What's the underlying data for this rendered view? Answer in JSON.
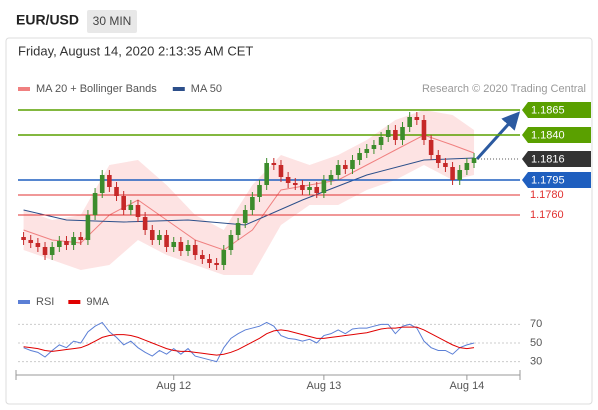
{
  "header": {
    "symbol": "EUR/USD",
    "timeframe": "30 MIN",
    "timestamp": "Friday, August 14, 2020 2:13:35 AM CET",
    "credit": "Research © 2020 Trading Central"
  },
  "chart_data": [
    {
      "type": "candlestick",
      "categories": [
        null,
        null,
        null,
        null,
        null,
        null,
        null,
        null,
        null,
        null,
        null,
        null,
        null,
        null,
        null,
        null,
        null,
        null,
        null,
        null,
        null,
        "Aug 12",
        null,
        null,
        null,
        null,
        null,
        null,
        null,
        null,
        null,
        null,
        null,
        null,
        null,
        null,
        null,
        null,
        null,
        null,
        null,
        null,
        "Aug 13",
        null,
        null,
        null,
        null,
        null,
        null,
        null,
        null,
        null,
        null,
        null,
        null,
        null,
        null,
        null,
        null,
        null,
        null,
        null,
        "Aug 14",
        null
      ],
      "open": [
        1.1738,
        1.1735,
        1.1732,
        1.1728,
        1.172,
        1.1728,
        1.1734,
        1.173,
        1.1738,
        1.1735,
        1.176,
        1.1782,
        1.18,
        1.1788,
        1.1779,
        1.1765,
        1.177,
        1.1758,
        1.1745,
        1.1735,
        1.174,
        1.1728,
        1.1733,
        1.1724,
        1.173,
        1.172,
        1.1716,
        1.1712,
        1.171,
        1.1725,
        1.174,
        1.1752,
        1.1765,
        1.1778,
        1.179,
        1.1812,
        1.181,
        1.1798,
        1.1792,
        1.179,
        1.1785,
        1.1788,
        1.1782,
        1.1795,
        1.18,
        1.181,
        1.1806,
        1.1815,
        1.1822,
        1.1826,
        1.183,
        1.1838,
        1.1845,
        1.1835,
        1.1848,
        1.1858,
        1.1855,
        1.1835,
        1.182,
        1.1812,
        1.1808,
        1.1795,
        1.1805,
        1.1812
      ],
      "high": [
        1.1743,
        1.174,
        1.1737,
        1.1733,
        1.1733,
        1.1739,
        1.1739,
        1.1743,
        1.1743,
        1.1765,
        1.1787,
        1.1805,
        1.1805,
        1.1793,
        1.1784,
        1.1775,
        1.1775,
        1.1763,
        1.175,
        1.1745,
        1.1745,
        1.1738,
        1.1738,
        1.1735,
        1.1735,
        1.1725,
        1.1721,
        1.1717,
        1.173,
        1.1745,
        1.1757,
        1.177,
        1.1783,
        1.1795,
        1.1817,
        1.1817,
        1.1815,
        1.1803,
        1.1797,
        1.1795,
        1.1793,
        1.1793,
        1.18,
        1.1805,
        1.1815,
        1.1815,
        1.182,
        1.1827,
        1.1831,
        1.1835,
        1.1843,
        1.185,
        1.185,
        1.1853,
        1.1863,
        1.1863,
        1.186,
        1.184,
        1.1825,
        1.1817,
        1.1813,
        1.181,
        1.1817,
        1.1822
      ],
      "low": [
        1.173,
        1.1727,
        1.1723,
        1.1715,
        1.1715,
        1.1723,
        1.1725,
        1.1725,
        1.173,
        1.173,
        1.1755,
        1.1777,
        1.1783,
        1.1774,
        1.176,
        1.176,
        1.1753,
        1.174,
        1.173,
        1.173,
        1.1723,
        1.1723,
        1.1719,
        1.1719,
        1.1715,
        1.1711,
        1.1707,
        1.1705,
        1.1705,
        1.172,
        1.1735,
        1.1747,
        1.176,
        1.1773,
        1.1785,
        1.1805,
        1.1793,
        1.1787,
        1.1785,
        1.178,
        1.178,
        1.1777,
        1.1777,
        1.179,
        1.1795,
        1.1801,
        1.1801,
        1.181,
        1.1817,
        1.1821,
        1.1825,
        1.1833,
        1.183,
        1.183,
        1.1843,
        1.185,
        1.183,
        1.1815,
        1.1807,
        1.1803,
        1.179,
        1.179,
        1.18,
        1.1807
      ],
      "close": [
        1.1735,
        1.1732,
        1.1728,
        1.172,
        1.1728,
        1.1734,
        1.173,
        1.1738,
        1.1735,
        1.176,
        1.1782,
        1.18,
        1.1788,
        1.1779,
        1.1765,
        1.177,
        1.1758,
        1.1745,
        1.1735,
        1.174,
        1.1728,
        1.1733,
        1.1724,
        1.173,
        1.172,
        1.1716,
        1.1712,
        1.171,
        1.1725,
        1.174,
        1.1752,
        1.1765,
        1.1778,
        1.179,
        1.1812,
        1.181,
        1.1798,
        1.1792,
        1.179,
        1.1785,
        1.1788,
        1.1782,
        1.1795,
        1.18,
        1.181,
        1.1806,
        1.1815,
        1.1822,
        1.1826,
        1.183,
        1.1838,
        1.1845,
        1.1835,
        1.1848,
        1.1858,
        1.1855,
        1.1835,
        1.182,
        1.1812,
        1.1808,
        1.1795,
        1.1805,
        1.1812,
        1.1817
      ],
      "up_color": "#3c8c2c",
      "down_color": "#c62828",
      "ylim": [
        1.17,
        1.1875
      ],
      "overlays": [
        {
          "name": "MA 20 + Bollinger Bands",
          "color": "#f08080",
          "band_color": "#fde3e3",
          "x": [
            0,
            4,
            8,
            12,
            16,
            20,
            24,
            28,
            32,
            36,
            40,
            44,
            48,
            52,
            56,
            60,
            63
          ],
          "values": [
            1.1745,
            1.1735,
            1.1732,
            1.176,
            1.1775,
            1.1755,
            1.1735,
            1.1725,
            1.1745,
            1.1785,
            1.179,
            1.1795,
            1.181,
            1.1825,
            1.184,
            1.183,
            1.1822
          ],
          "upper": [
            1.1765,
            1.1755,
            1.176,
            1.181,
            1.1815,
            1.179,
            1.176,
            1.1745,
            1.179,
            1.182,
            1.181,
            1.182,
            1.1835,
            1.1855,
            1.1865,
            1.186,
            1.1845
          ],
          "lower": [
            1.1725,
            1.1715,
            1.1705,
            1.171,
            1.1735,
            1.172,
            1.171,
            1.17,
            1.17,
            1.175,
            1.177,
            1.177,
            1.1785,
            1.1795,
            1.181,
            1.1795,
            1.18
          ]
        },
        {
          "name": "MA 50",
          "color": "#2c4f8a",
          "x": [
            0,
            6,
            14,
            23,
            31,
            39,
            48,
            56,
            63
          ],
          "values": [
            1.1765,
            1.1755,
            1.1753,
            1.1755,
            1.175,
            1.1775,
            1.18,
            1.1815,
            1.1817
          ]
        }
      ],
      "levels": [
        {
          "value": 1.1865,
          "color": "#5aa000",
          "style": "box"
        },
        {
          "value": 1.184,
          "label": "1.1840",
          "color": "#5aa000",
          "style": "box"
        },
        {
          "value": 1.1816,
          "color": "#333333",
          "style": "current"
        },
        {
          "value": 1.1795,
          "color": "#1f5fbf",
          "style": "box"
        },
        {
          "value": 1.178,
          "label": "1.1780",
          "color": "#e03030",
          "style": "text"
        },
        {
          "value": 1.176,
          "label": "1.1760",
          "color": "#e03030",
          "style": "text"
        }
      ]
    },
    {
      "type": "line",
      "series": [
        {
          "name": "RSI",
          "color": "#5b7fd6",
          "values": [
            45,
            42,
            40,
            35,
            42,
            48,
            45,
            52,
            50,
            62,
            68,
            72,
            62,
            56,
            48,
            52,
            45,
            40,
            36,
            42,
            38,
            44,
            38,
            44,
            36,
            34,
            32,
            30,
            45,
            55,
            60,
            64,
            66,
            68,
            72,
            68,
            58,
            55,
            54,
            52,
            54,
            50,
            58,
            60,
            64,
            60,
            65,
            66,
            66,
            68,
            70,
            70,
            60,
            68,
            70,
            66,
            52,
            45,
            42,
            42,
            38,
            45,
            48,
            50
          ]
        },
        {
          "name": "9MA",
          "color": "#e00000",
          "values": [
            46,
            45,
            44,
            42,
            41,
            42,
            43,
            44,
            45,
            48,
            52,
            56,
            58,
            59,
            59,
            58,
            56,
            53,
            50,
            47,
            44,
            42,
            41,
            41,
            40,
            39,
            38,
            37,
            38,
            40,
            43,
            47,
            51,
            55,
            60,
            63,
            64,
            63,
            61,
            59,
            57,
            55,
            55,
            56,
            57,
            58,
            59,
            60,
            61,
            63,
            65,
            66,
            66,
            67,
            67,
            67,
            64,
            60,
            56,
            52,
            48,
            45,
            44,
            45
          ]
        }
      ],
      "ylim": [
        20,
        80
      ],
      "yticks": [
        30,
        50,
        70
      ],
      "grid": true
    }
  ]
}
